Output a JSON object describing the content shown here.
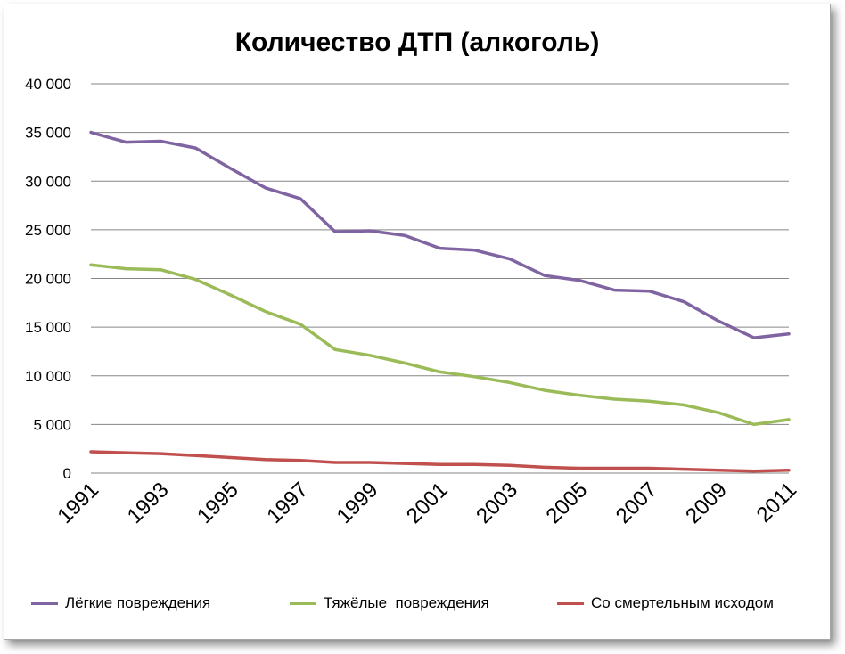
{
  "chart_data": {
    "type": "line",
    "title": "Количество ДТП (алкоголь)",
    "xlabel": "",
    "ylabel": "",
    "ylim": [
      0,
      40000
    ],
    "y_ticks": [
      "0",
      "5 000",
      "10 000",
      "15 000",
      "20 000",
      "25 000",
      "30 000",
      "35 000",
      "40 000"
    ],
    "x": [
      1991,
      1992,
      1993,
      1994,
      1995,
      1996,
      1997,
      1998,
      1999,
      2000,
      2001,
      2002,
      2003,
      2004,
      2005,
      2006,
      2007,
      2008,
      2009,
      2010,
      2011
    ],
    "x_tick_labels": [
      "1991",
      "1993",
      "1995",
      "1997",
      "1999",
      "2001",
      "2003",
      "2005",
      "2007",
      "2009",
      "2011"
    ],
    "grid": "horizontal",
    "legend_position": "bottom",
    "series": [
      {
        "name": "Лёгкие повреждения",
        "color": "#8064a2",
        "values": [
          35000,
          34000,
          34100,
          33400,
          31300,
          29300,
          28200,
          24800,
          24900,
          24400,
          23100,
          22900,
          22000,
          20300,
          19800,
          18800,
          18700,
          17600,
          15600,
          13900,
          14300
        ]
      },
      {
        "name": "Тяжёлые  повреждения",
        "color": "#9bbb59",
        "values": [
          21400,
          21000,
          20900,
          19900,
          18300,
          16600,
          15300,
          12700,
          12100,
          11300,
          10400,
          9900,
          9300,
          8500,
          8000,
          7600,
          7400,
          7000,
          6200,
          5000,
          5500
        ]
      },
      {
        "name": "Со смертельным исходом",
        "color": "#c0504d",
        "values": [
          2200,
          2100,
          2000,
          1800,
          1600,
          1400,
          1300,
          1100,
          1100,
          1000,
          900,
          900,
          800,
          600,
          500,
          500,
          500,
          400,
          300,
          200,
          300
        ]
      }
    ]
  }
}
